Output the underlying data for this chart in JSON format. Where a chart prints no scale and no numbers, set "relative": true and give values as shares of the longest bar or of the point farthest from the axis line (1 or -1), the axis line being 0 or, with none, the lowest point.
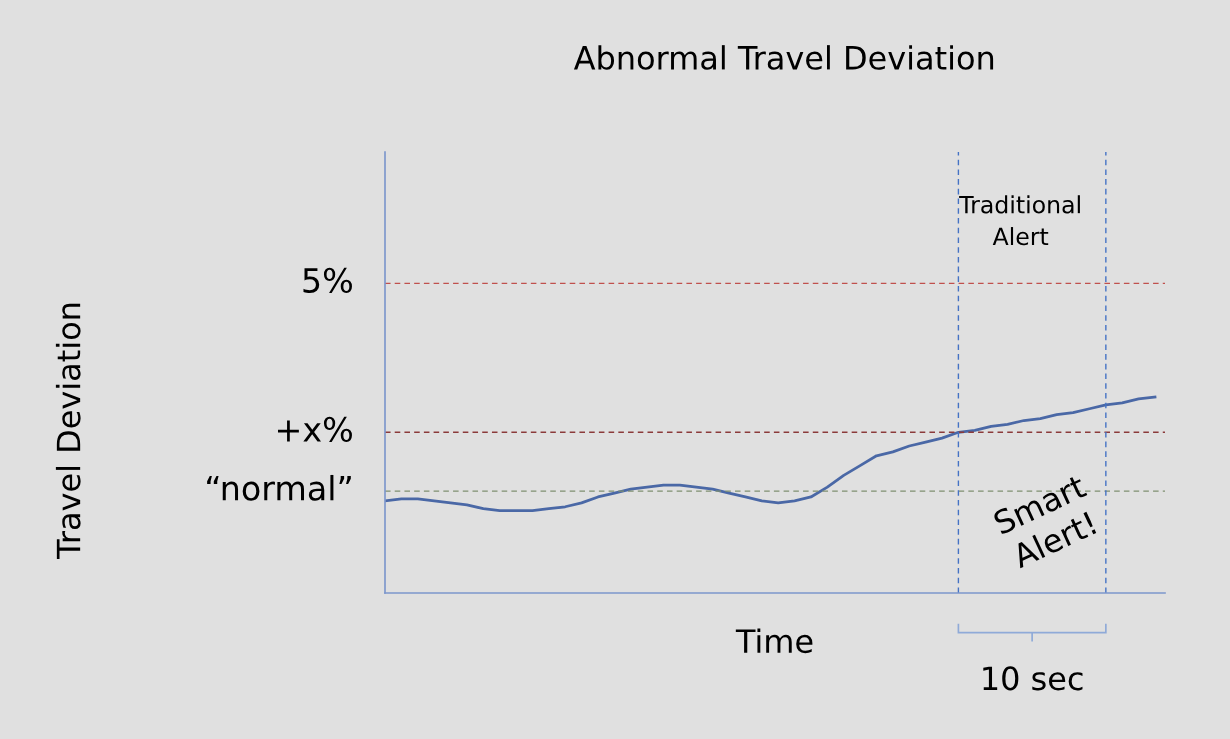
{
  "chart_data": {
    "type": "line",
    "title": "Abnormal Travel Deviation",
    "xlabel": "Time",
    "relative": true,
    "categories": [
      null,
      null,
      null,
      null,
      null,
      null,
      null,
      null,
      null,
      null,
      null,
      null,
      null,
      null,
      null,
      null,
      null,
      null,
      null,
      null,
      null,
      null,
      null,
      null,
      null,
      null,
      null,
      null,
      null,
      null,
      null,
      null,
      null,
      null,
      null,
      null,
      null,
      null,
      null,
      null,
      null,
      null,
      null,
      null,
      null,
      null,
      null,
      null
    ],
    "series": [
      {
        "color": "#4a68a6",
        "values": [
          0.47,
          0.48,
          0.48,
          0.47,
          0.46,
          0.45,
          0.43,
          0.42,
          0.42,
          0.42,
          0.43,
          0.44,
          0.46,
          0.49,
          0.51,
          0.53,
          0.54,
          0.55,
          0.55,
          0.54,
          0.53,
          0.51,
          0.49,
          0.47,
          0.46,
          0.47,
          0.49,
          0.54,
          0.6,
          0.65,
          0.7,
          0.72,
          0.75,
          0.77,
          0.79,
          0.82,
          0.83,
          0.85,
          0.86,
          0.88,
          0.89,
          0.91,
          0.92,
          0.94,
          0.96,
          0.97,
          0.99,
          1
        ]
      }
    ],
    "ref_lines": [
      {
        "axis": "y",
        "value": 1.58,
        "color": "#c0504d",
        "line_style": "dashed"
      },
      {
        "axis": "y",
        "value": 0.82,
        "color": "#8b3a3a",
        "line_style": "dashed"
      },
      {
        "axis": "y",
        "value": 0.52,
        "color": "#7f8f70",
        "line_style": "dashed"
      }
    ],
    "annotations": [
      "Travel Deviation",
      "5%",
      "+x%",
      "“normal”",
      "Traditional\nAlert",
      "Smart\nAlert!",
      "10 sec"
    ],
    "grid": false,
    "legend": false
  }
}
